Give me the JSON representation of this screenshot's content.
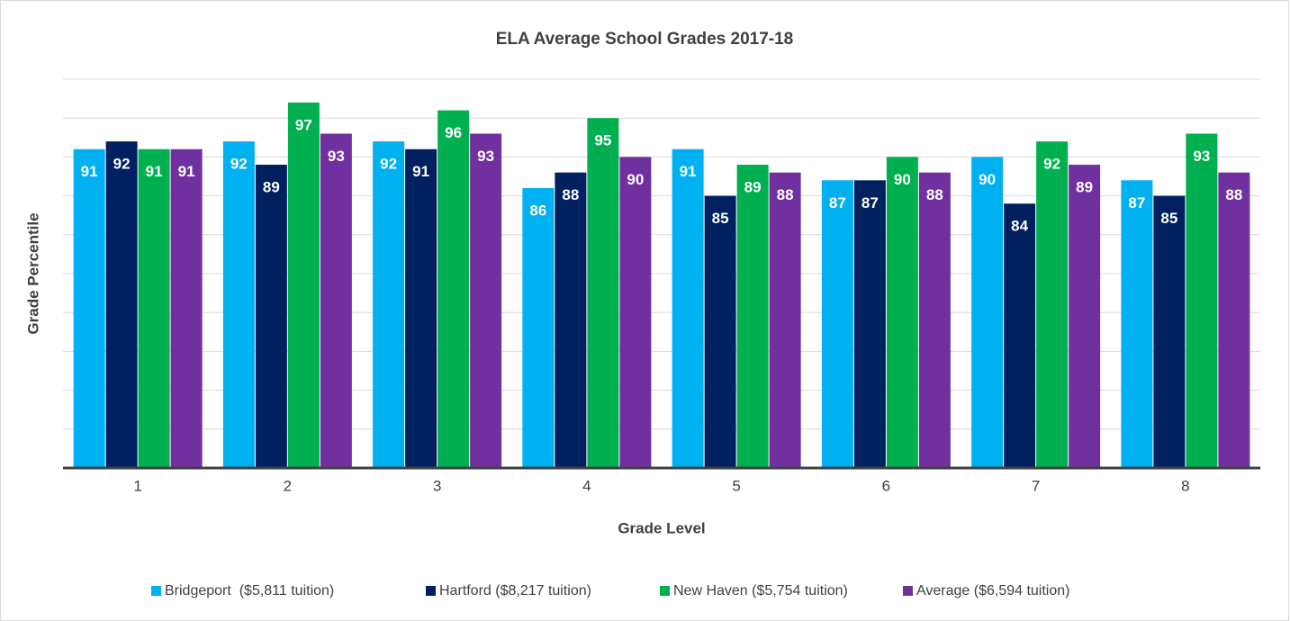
{
  "chart_data": {
    "type": "bar",
    "title": "ELA Average School Grades 2017-18",
    "x_label": "Grade Level",
    "y_label": "Grade Percentile",
    "categories": [
      "1",
      "2",
      "3",
      "4",
      "5",
      "6",
      "7",
      "8"
    ],
    "series": [
      {
        "name": "Bridgeport  ($5,811 tuition)",
        "color": "#00b0f0",
        "values": [
          91,
          92,
          92,
          86,
          91,
          87,
          90,
          87
        ]
      },
      {
        "name": "Hartford ($8,217 tuition)",
        "color": "#002060",
        "values": [
          92,
          89,
          91,
          88,
          85,
          87,
          84,
          85
        ]
      },
      {
        "name": "New Haven ($5,754 tuition)",
        "color": "#00b050",
        "values": [
          91,
          97,
          96,
          95,
          89,
          90,
          92,
          93
        ]
      },
      {
        "name": "Average ($6,594 tuition)",
        "color": "#7030a0",
        "values": [
          91,
          93,
          93,
          90,
          88,
          88,
          89,
          88
        ]
      }
    ],
    "ylim": [
      50,
      100
    ],
    "yticks": [
      50,
      55,
      60,
      65,
      70,
      75,
      80,
      85,
      90,
      95,
      100
    ],
    "grid": true,
    "legend": "bottom"
  }
}
